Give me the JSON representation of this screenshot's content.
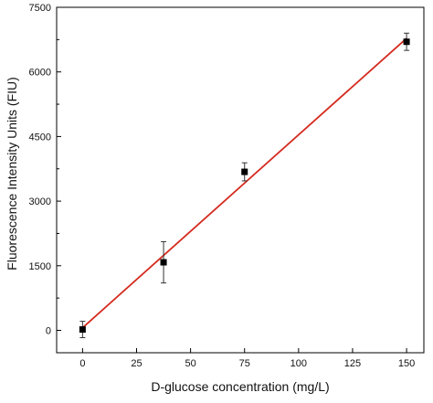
{
  "chart_data": {
    "type": "scatter",
    "title": "",
    "xlabel": "D-glucose concentration (mg/L)",
    "ylabel": "Fluorescence Intensity Units (FIU)",
    "xlim": [
      -12,
      158
    ],
    "ylim": [
      -520,
      7500
    ],
    "x_ticks": [
      0,
      25,
      50,
      75,
      100,
      125,
      150
    ],
    "y_ticks": [
      0,
      1500,
      3000,
      4500,
      6000,
      7500
    ],
    "grid": false,
    "legend": "none",
    "series": [
      {
        "marker": "square",
        "color": "#000000",
        "points": [
          {
            "x": 0,
            "y": 20,
            "err": 190
          },
          {
            "x": 37.5,
            "y": 1580,
            "err": 480
          },
          {
            "x": 75,
            "y": 3680,
            "err": 210
          },
          {
            "x": 150,
            "y": 6700,
            "err": 200
          }
        ]
      }
    ],
    "fit_line": {
      "color": "#d42a1e",
      "x": [
        0,
        150
      ],
      "y": [
        60,
        6780
      ]
    }
  }
}
